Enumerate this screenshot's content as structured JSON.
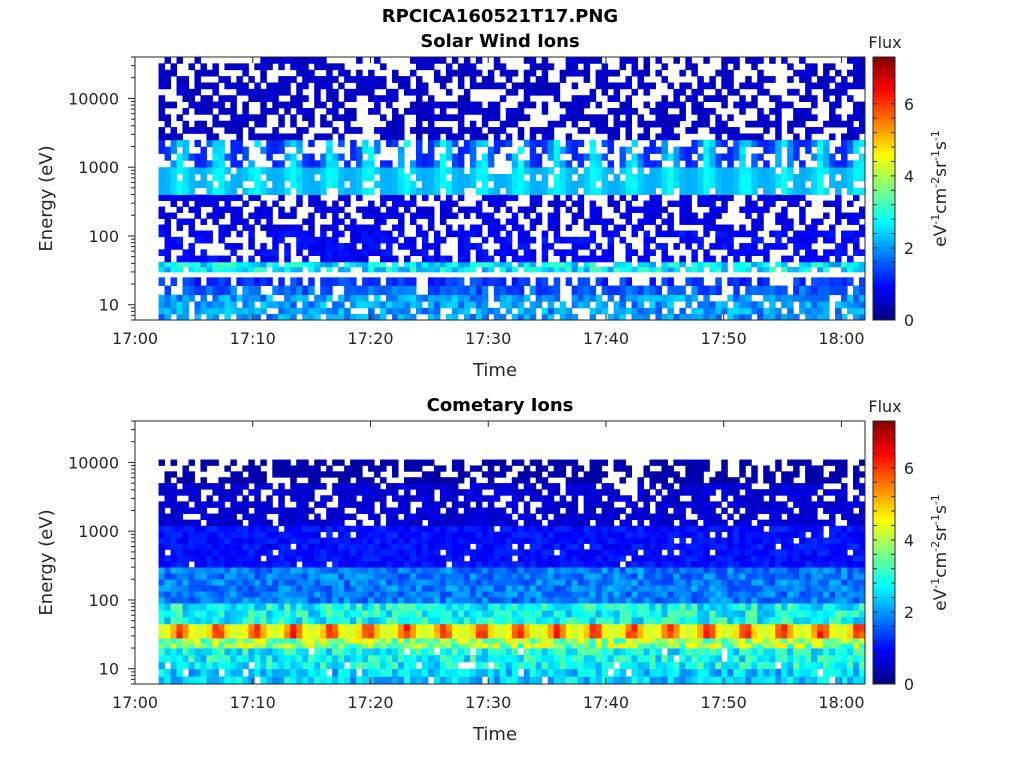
{
  "figure": {
    "title": "RPCICA160521T17.PNG"
  },
  "chart_data": [
    {
      "type": "heatmap",
      "title": "Solar Wind Ions",
      "xlabel": "Time",
      "ylabel": "Energy (eV)",
      "x_ticks": [
        "17:00",
        "17:10",
        "17:20",
        "17:30",
        "17:40",
        "17:50",
        "18:00"
      ],
      "xlim": [
        "17:00",
        "18:02"
      ],
      "y_scale": "log",
      "y_ticks": [
        "10",
        "100",
        "1000",
        "10000"
      ],
      "ylim": [
        6,
        40000
      ],
      "colorbar": {
        "title": "Flux",
        "label": "eV-1cm-2sr-1s-1",
        "ticks": [
          "0",
          "2",
          "4",
          "6"
        ],
        "range": [
          0,
          7.3
        ],
        "colormap": "jet"
      },
      "data_start": "17:02",
      "bands": [
        {
          "energy_range": [
            6,
            9
          ],
          "level": 2.0,
          "coverage": 0.75
        },
        {
          "energy_range": [
            9,
            14
          ],
          "level": 2.0,
          "coverage": 0.8
        },
        {
          "energy_range": [
            14,
            19
          ],
          "level": 1.6,
          "coverage": 0.8
        },
        {
          "energy_range": [
            19,
            25
          ],
          "level": 1.3,
          "coverage": 0.7
        },
        {
          "energy_range": [
            30,
            42
          ],
          "level": 2.6,
          "coverage": 0.85
        },
        {
          "energy_range": [
            42,
            120
          ],
          "level": 0.9,
          "coverage": 0.6
        },
        {
          "energy_range": [
            120,
            400
          ],
          "level": 0.7,
          "coverage": 0.55
        },
        {
          "energy_range": [
            400,
            1000
          ],
          "level": 2.7,
          "coverage": 0.85,
          "periodic": true
        },
        {
          "energy_range": [
            1000,
            2500
          ],
          "level": 1.4,
          "coverage": 0.65,
          "periodic": true
        },
        {
          "energy_range": [
            2500,
            40000
          ],
          "level": 0.5,
          "coverage": 0.55
        }
      ],
      "periodic_features": {
        "period_minutes": 3.2,
        "peak_level": 2.8
      }
    },
    {
      "type": "heatmap",
      "title": "Cometary Ions",
      "xlabel": "Time",
      "ylabel": "Energy (eV)",
      "x_ticks": [
        "17:00",
        "17:10",
        "17:20",
        "17:30",
        "17:40",
        "17:50",
        "18:00"
      ],
      "xlim": [
        "17:00",
        "18:02"
      ],
      "y_scale": "log",
      "y_ticks": [
        "10",
        "100",
        "1000",
        "10000"
      ],
      "ylim": [
        6,
        40000
      ],
      "colorbar": {
        "title": "Flux",
        "label": "eV-1cm-2sr-1s-1",
        "ticks": [
          "0",
          "2",
          "4",
          "6"
        ],
        "range": [
          0,
          7.3
        ],
        "colormap": "jet"
      },
      "data_start": "17:02",
      "bands": [
        {
          "energy_range": [
            6,
            10
          ],
          "level": 2.4,
          "coverage": 0.9
        },
        {
          "energy_range": [
            10,
            20
          ],
          "level": 2.8,
          "coverage": 0.95
        },
        {
          "energy_range": [
            20,
            28
          ],
          "level": 3.8,
          "coverage": 1.0
        },
        {
          "energy_range": [
            28,
            45
          ],
          "level": 5.3,
          "coverage": 1.0,
          "periodic": true
        },
        {
          "energy_range": [
            45,
            90
          ],
          "level": 2.8,
          "coverage": 1.0
        },
        {
          "energy_range": [
            90,
            300
          ],
          "level": 1.8,
          "coverage": 1.0
        },
        {
          "energy_range": [
            300,
            1200
          ],
          "level": 1.0,
          "coverage": 0.95
        },
        {
          "energy_range": [
            1200,
            5000
          ],
          "level": 0.6,
          "coverage": 0.75
        },
        {
          "energy_range": [
            5000,
            11000
          ],
          "level": 0.3,
          "coverage": 0.6
        }
      ],
      "periodic_features": {
        "period_minutes": 3.2,
        "peak_level": 6.2
      }
    }
  ]
}
